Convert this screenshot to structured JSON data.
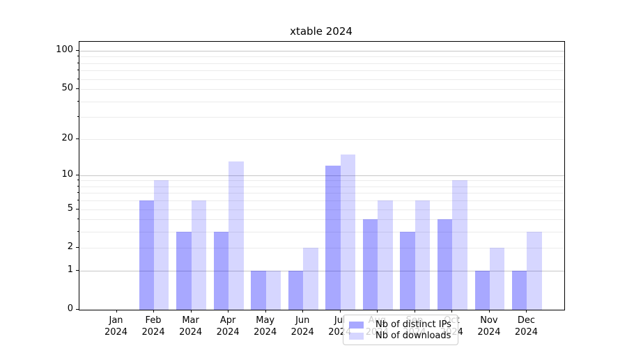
{
  "title": "xtable 2024",
  "chart_data": {
    "type": "bar",
    "title": "xtable 2024",
    "y_scale": "log1p",
    "ylim": [
      0,
      118
    ],
    "grid": "both",
    "legend_position": "lower center",
    "x_categories": [
      "Jan 2024",
      "Feb 2024",
      "Mar 2024",
      "Apr 2024",
      "May 2024",
      "Jun 2024",
      "Jul 2024",
      "Aug 2024",
      "Sep 2024",
      "Oct 2024",
      "Nov 2024",
      "Dec 2024"
    ],
    "x_tick_months": [
      "Jan",
      "Feb",
      "Mar",
      "Apr",
      "May",
      "Jun",
      "Jul",
      "Aug",
      "Sep",
      "Oct",
      "Nov",
      "Dec"
    ],
    "x_tick_year": "2024",
    "series": [
      {
        "name": "Nb of distinct IPs",
        "color": "rgba(0,0,255,0.34)",
        "values": [
          0,
          6,
          3,
          3,
          1,
          1,
          12,
          4,
          3,
          4,
          1,
          1
        ]
      },
      {
        "name": "Nb of downloads",
        "color": "rgba(0,0,255,0.16)",
        "values": [
          0,
          9,
          6,
          13,
          1,
          2,
          15,
          6,
          6,
          9,
          2,
          3
        ]
      }
    ],
    "y_tick_labels": [
      0,
      1,
      2,
      5,
      10,
      20,
      50,
      100
    ],
    "y_major_gridlines": [
      1,
      10,
      100
    ],
    "y_minor_gridlines": [
      2,
      3,
      4,
      5,
      6,
      7,
      8,
      9,
      20,
      30,
      40,
      50,
      60,
      70,
      80,
      90
    ]
  },
  "colors": {
    "bar_dark": "rgba(0,0,255,0.34)",
    "bar_light": "rgba(0,0,255,0.16)",
    "grid_major": "#c6c6c6",
    "grid_minor": "#ebebeb",
    "axis": "#000000",
    "legend_border": "#cccccc"
  }
}
